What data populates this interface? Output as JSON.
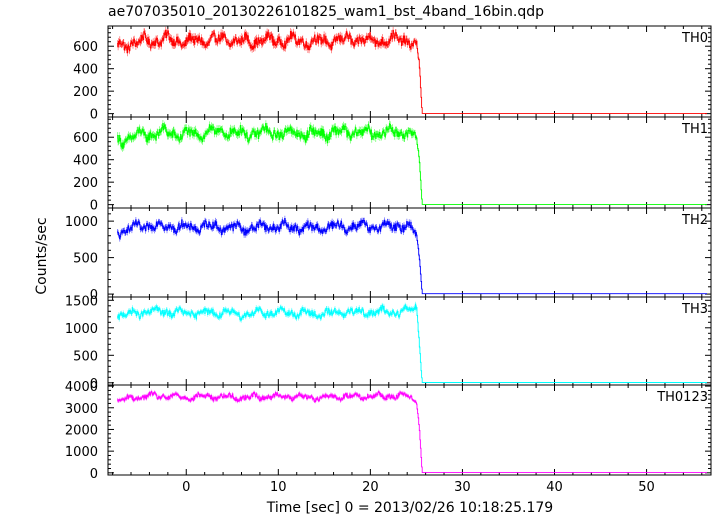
{
  "title": "ae707035010_20130226101825_wam1_bst_4band_16bin.qdp",
  "xlabel": "Time [sec] 0 = 2013/02/26 10:18:25.179",
  "ylabel": "Counts/sec",
  "chart_data": {
    "type": "line",
    "title": "ae707035010_20130226101825_wam1_bst_4band_16bin.qdp",
    "xlabel": "Time [sec] 0 = 2013/02/26 10:18:25.179",
    "ylabel": "Counts/sec",
    "xlim": [
      -8.5,
      57
    ],
    "xticks": [
      0,
      10,
      20,
      30,
      40,
      50
    ],
    "xtick_labels": [
      "0",
      "10",
      "20",
      "30",
      "40",
      "50"
    ],
    "grid": false,
    "shared_x": true,
    "panels": [
      {
        "name": "TH0",
        "color": "#ff0000",
        "ylim": [
          -30,
          780
        ],
        "yticks": [
          0,
          200,
          400,
          600
        ],
        "ytick_labels": [
          "0",
          "200",
          "400",
          "600"
        ],
        "x": [
          -7.5,
          -6,
          -4,
          -2,
          0,
          2,
          4,
          6,
          8,
          10,
          12,
          14,
          16,
          18,
          20,
          22,
          24,
          25,
          25.3,
          25.6,
          26,
          30,
          35,
          40,
          45,
          50,
          55,
          56.5
        ],
        "values": [
          590,
          630,
          650,
          660,
          640,
          650,
          660,
          640,
          650,
          655,
          650,
          640,
          650,
          660,
          650,
          655,
          660,
          600,
          420,
          2,
          2,
          2,
          2,
          2,
          2,
          2,
          2,
          2
        ],
        "amplitude": [
          85,
          85,
          85,
          85,
          85,
          85,
          85,
          85,
          85,
          85,
          85,
          85,
          85,
          85,
          85,
          85,
          85,
          60,
          40,
          0,
          0,
          0,
          0,
          0,
          0,
          0,
          0,
          0
        ]
      },
      {
        "name": "TH1",
        "color": "#00ff00",
        "ylim": [
          -30,
          780
        ],
        "yticks": [
          0,
          200,
          400,
          600
        ],
        "ytick_labels": [
          "0",
          "200",
          "400",
          "600"
        ],
        "x": [
          -7.5,
          -6,
          -4,
          -2,
          0,
          2,
          4,
          6,
          8,
          10,
          12,
          14,
          16,
          18,
          20,
          22,
          24,
          25,
          25.3,
          25.6,
          26,
          30,
          35,
          40,
          45,
          50,
          55,
          56.5
        ],
        "values": [
          560,
          600,
          630,
          640,
          620,
          640,
          650,
          630,
          640,
          640,
          635,
          630,
          640,
          645,
          640,
          645,
          650,
          580,
          400,
          2,
          2,
          2,
          2,
          2,
          2,
          2,
          2,
          2
        ],
        "amplitude": [
          85,
          85,
          85,
          85,
          85,
          85,
          85,
          85,
          85,
          85,
          85,
          85,
          85,
          85,
          85,
          85,
          85,
          60,
          40,
          0,
          0,
          0,
          0,
          0,
          0,
          0,
          0,
          0
        ]
      },
      {
        "name": "TH2",
        "color": "#0000ff",
        "ylim": [
          -40,
          1180
        ],
        "yticks": [
          0,
          500,
          1000
        ],
        "ytick_labels": [
          "0",
          "500",
          "1000"
        ],
        "x": [
          -7.5,
          -6,
          -4,
          -2,
          0,
          2,
          4,
          6,
          8,
          10,
          12,
          14,
          16,
          18,
          20,
          22,
          24,
          25,
          25.3,
          25.6,
          26,
          30,
          35,
          40,
          45,
          50,
          55,
          56.5
        ],
        "values": [
          850,
          900,
          940,
          930,
          910,
          930,
          920,
          900,
          920,
          930,
          910,
          900,
          920,
          930,
          920,
          930,
          940,
          820,
          500,
          5,
          5,
          5,
          5,
          5,
          5,
          5,
          5,
          5
        ],
        "amplitude": [
          110,
          110,
          110,
          110,
          110,
          110,
          110,
          110,
          110,
          110,
          110,
          110,
          110,
          110,
          110,
          110,
          110,
          80,
          60,
          0,
          0,
          0,
          0,
          0,
          0,
          0,
          0,
          0
        ]
      },
      {
        "name": "TH3",
        "color": "#00ffff",
        "ylim": [
          -40,
          1560
        ],
        "yticks": [
          0,
          500,
          1000,
          1500
        ],
        "ytick_labels": [
          "0",
          "500",
          "1000",
          "1500"
        ],
        "x": [
          -7.5,
          -6,
          -4,
          -2,
          0,
          2,
          4,
          6,
          8,
          10,
          12,
          14,
          16,
          18,
          20,
          22,
          24,
          25,
          25.3,
          25.6,
          26,
          30,
          35,
          40,
          45,
          50,
          55,
          56.5
        ],
        "values": [
          1230,
          1250,
          1300,
          1290,
          1260,
          1280,
          1270,
          1250,
          1270,
          1280,
          1270,
          1250,
          1270,
          1290,
          1280,
          1290,
          1300,
          1400,
          720,
          5,
          5,
          5,
          5,
          5,
          5,
          5,
          5,
          5
        ],
        "amplitude": [
          120,
          120,
          120,
          120,
          120,
          120,
          120,
          120,
          120,
          120,
          120,
          120,
          120,
          120,
          120,
          120,
          120,
          120,
          80,
          0,
          0,
          0,
          0,
          0,
          0,
          0,
          0,
          0
        ]
      },
      {
        "name": "TH0123",
        "color": "#ff00ff",
        "ylim": [
          -100,
          4050
        ],
        "yticks": [
          0,
          1000,
          2000,
          3000,
          4000
        ],
        "ytick_labels": [
          "0",
          "1000",
          "2000",
          "3000",
          "4000"
        ],
        "x": [
          -7.5,
          -6,
          -4,
          -2,
          0,
          2,
          4,
          6,
          8,
          10,
          12,
          14,
          16,
          18,
          20,
          22,
          24,
          25,
          25.3,
          25.6,
          26,
          30,
          35,
          40,
          45,
          50,
          55,
          56.5
        ],
        "values": [
          3300,
          3450,
          3550,
          3520,
          3480,
          3520,
          3510,
          3470,
          3510,
          3530,
          3500,
          3480,
          3510,
          3540,
          3520,
          3540,
          3580,
          3300,
          2100,
          10,
          10,
          10,
          10,
          10,
          10,
          10,
          10,
          10
        ],
        "amplitude": [
          220,
          220,
          220,
          220,
          220,
          220,
          220,
          220,
          220,
          220,
          220,
          220,
          220,
          220,
          220,
          220,
          220,
          150,
          100,
          0,
          0,
          0,
          0,
          0,
          0,
          0,
          0,
          0
        ]
      }
    ]
  }
}
